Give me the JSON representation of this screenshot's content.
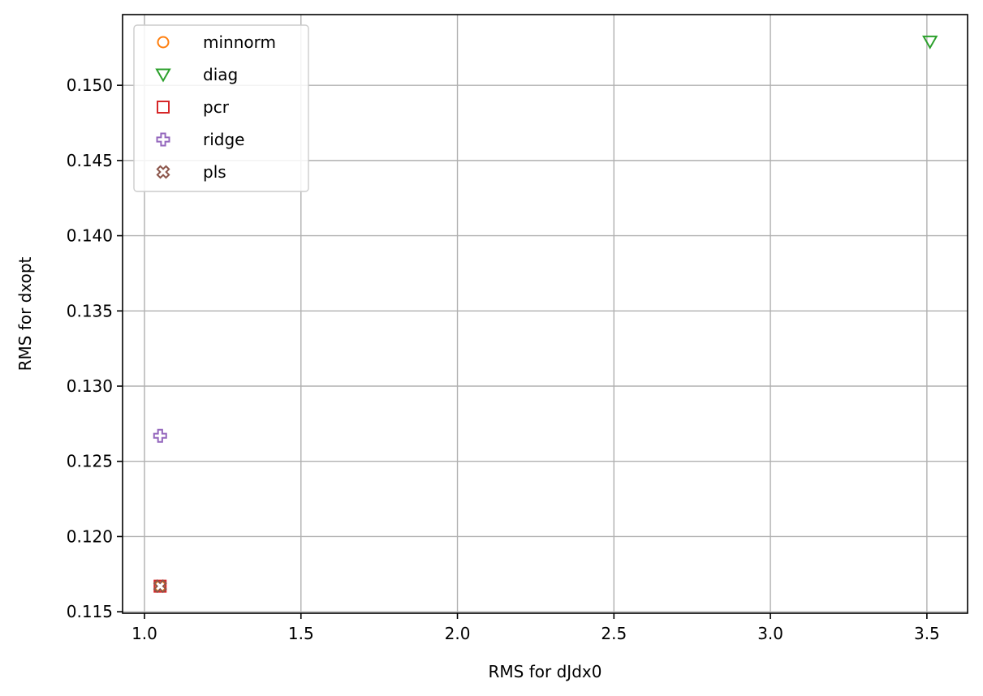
{
  "chart_data": {
    "type": "scatter",
    "xlabel": "RMS for dJdx0",
    "ylabel": "RMS for dxopt",
    "xlim": [
      0.93,
      3.63
    ],
    "ylim": [
      0.1149,
      0.1547
    ],
    "xticks": [
      1.0,
      1.5,
      2.0,
      2.5,
      3.0,
      3.5
    ],
    "xtick_labels": [
      "1.0",
      "1.5",
      "2.0",
      "2.5",
      "3.0",
      "3.5"
    ],
    "yticks": [
      0.115,
      0.12,
      0.125,
      0.13,
      0.135,
      0.14,
      0.145,
      0.15
    ],
    "ytick_labels": [
      "0.115",
      "0.120",
      "0.125",
      "0.130",
      "0.135",
      "0.140",
      "0.145",
      "0.150"
    ],
    "grid": true,
    "legend_position": "top-left",
    "series": [
      {
        "name": "minnorm",
        "marker": "circle",
        "color": "#ff7f0e",
        "points": [
          [
            1.05,
            0.1167
          ]
        ]
      },
      {
        "name": "diag",
        "marker": "triangle-down",
        "color": "#2ca02c",
        "points": [
          [
            3.51,
            0.1529
          ]
        ]
      },
      {
        "name": "pcr",
        "marker": "square",
        "color": "#d62728",
        "points": [
          [
            1.05,
            0.1167
          ]
        ]
      },
      {
        "name": "ridge",
        "marker": "plus",
        "color": "#9467bd",
        "points": [
          [
            1.05,
            0.1267
          ]
        ]
      },
      {
        "name": "pls",
        "marker": "x",
        "color": "#8c564b",
        "points": [
          [
            1.05,
            0.1167
          ]
        ]
      }
    ]
  }
}
